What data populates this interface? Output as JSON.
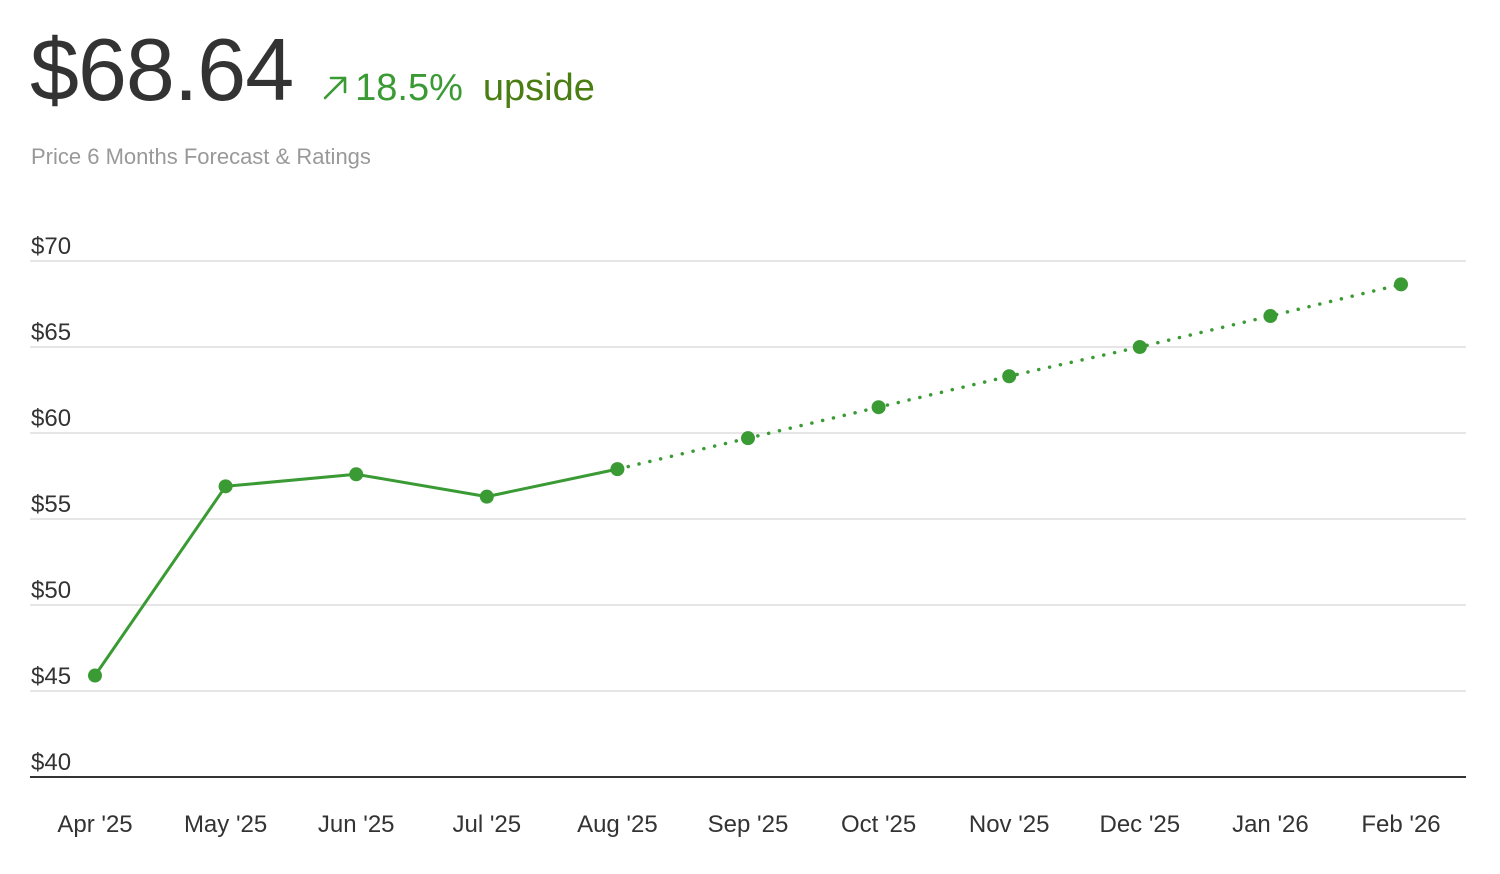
{
  "header": {
    "price": "$68.64",
    "change_pct": "18.5%",
    "change_word": "upside",
    "subtitle": "Price 6 Months Forecast & Ratings",
    "arrow_icon": "arrow-up-right-icon"
  },
  "colors": {
    "line": "#3a9a34",
    "upside_text": "#4a7d12",
    "grid": "#dddddd",
    "axis": "#333333"
  },
  "chart_data": {
    "type": "line",
    "title": "",
    "xlabel": "",
    "ylabel": "",
    "categories": [
      "Apr '25",
      "May '25",
      "Jun '25",
      "Jul '25",
      "Aug '25",
      "Sep '25",
      "Oct '25",
      "Nov '25",
      "Dec '25",
      "Jan '26",
      "Feb '26"
    ],
    "y_ticks": [
      "$70",
      "$65",
      "$60",
      "$55",
      "$50",
      "$45",
      "$40"
    ],
    "y_tick_values": [
      70,
      65,
      60,
      55,
      50,
      45,
      40
    ],
    "ylim": [
      40,
      70
    ],
    "grid": true,
    "series": [
      {
        "style": "solid",
        "points": [
          {
            "x": "Apr '25",
            "y": 45.9
          },
          {
            "x": "May '25",
            "y": 56.9
          },
          {
            "x": "Jun '25",
            "y": 57.6
          },
          {
            "x": "Jul '25",
            "y": 56.3
          },
          {
            "x": "Aug '25",
            "y": 57.9
          }
        ]
      },
      {
        "style": "dotted",
        "points": [
          {
            "x": "Aug '25",
            "y": 57.9
          },
          {
            "x": "Sep '25",
            "y": 59.7
          },
          {
            "x": "Oct '25",
            "y": 61.5
          },
          {
            "x": "Nov '25",
            "y": 63.3
          },
          {
            "x": "Dec '25",
            "y": 65.0
          },
          {
            "x": "Jan '26",
            "y": 66.8
          },
          {
            "x": "Feb '26",
            "y": 68.64
          }
        ]
      }
    ]
  }
}
